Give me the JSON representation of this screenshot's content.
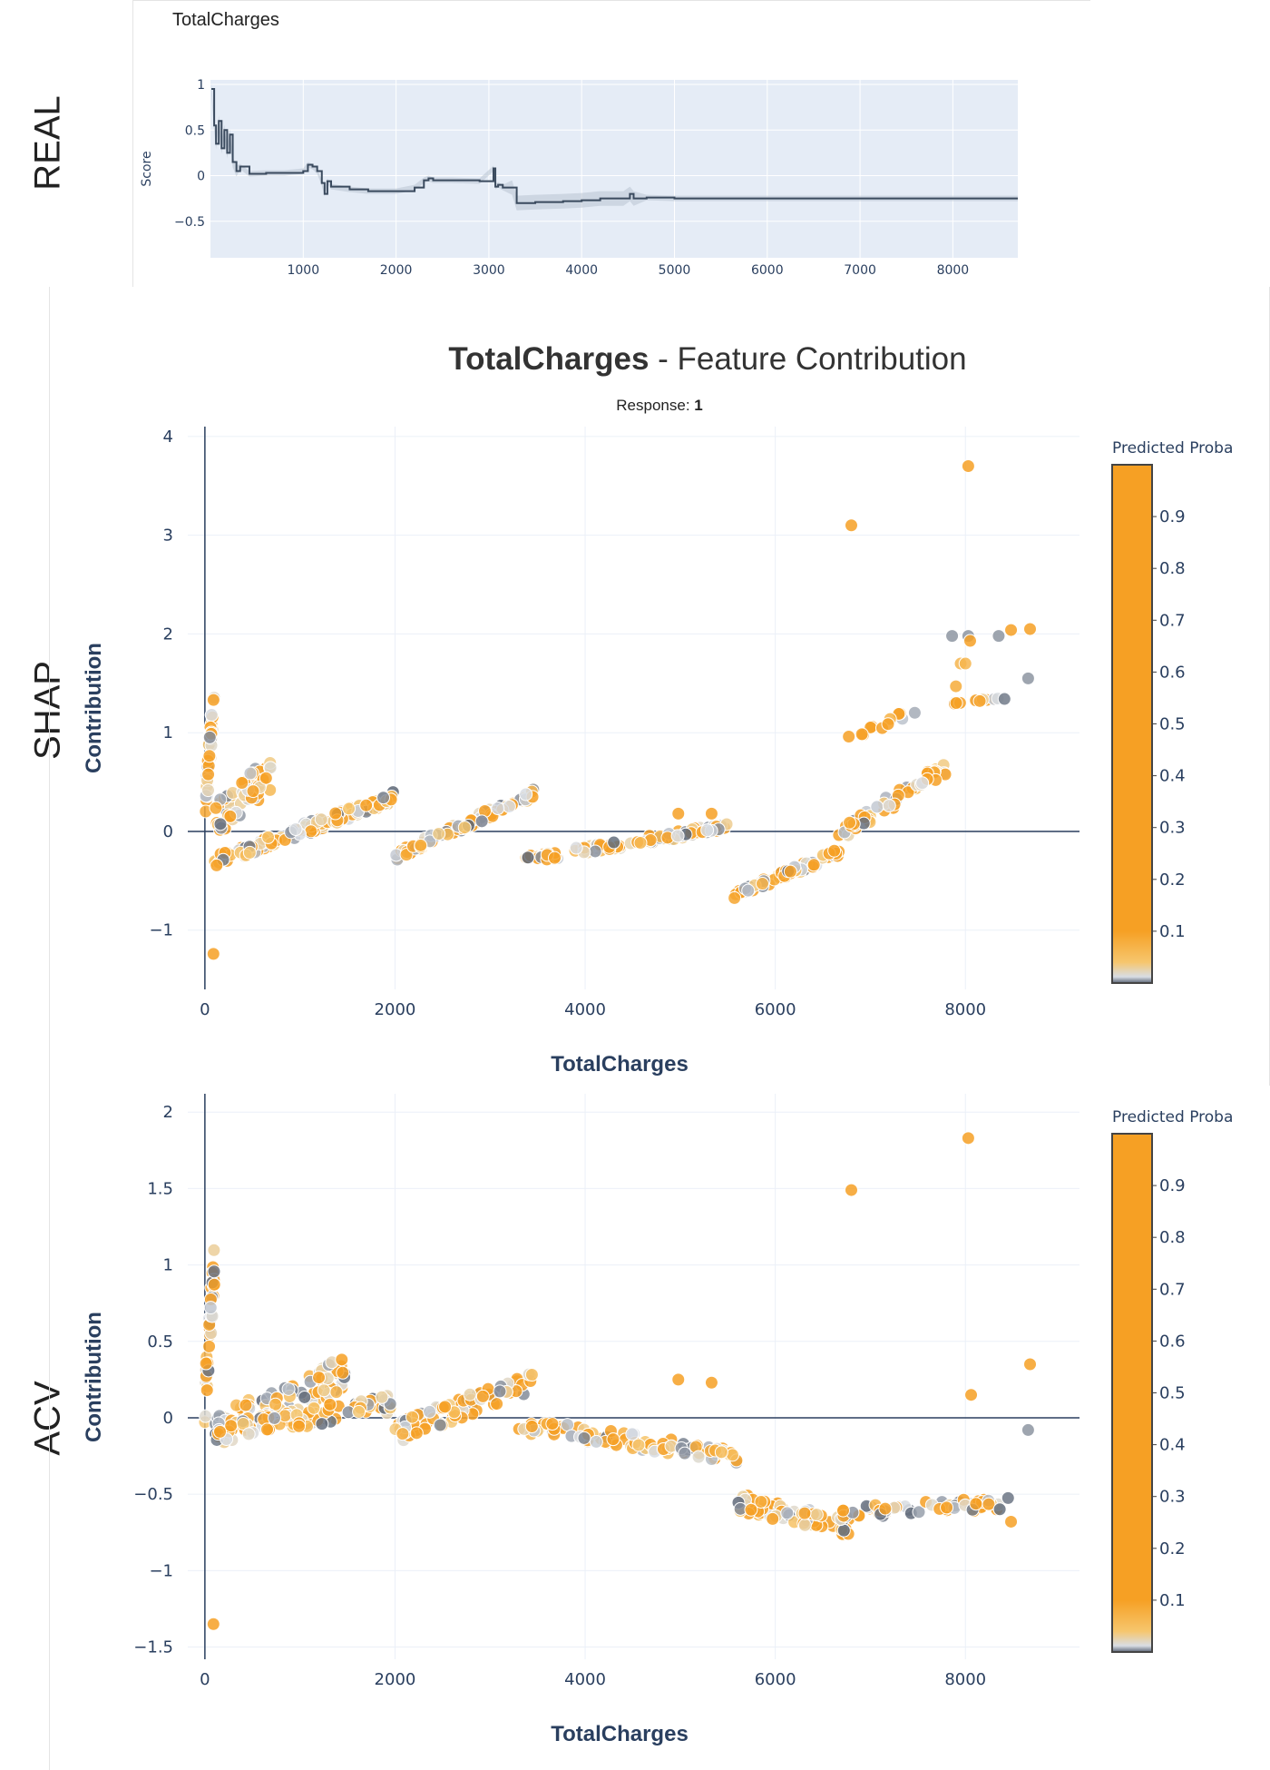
{
  "side_labels": [
    "REAL",
    "SHAP",
    "ACV"
  ],
  "colors": {
    "proba_high": "#F6A024",
    "proba_mid": "#F6C66E",
    "proba_low": "#D8DDE4",
    "proba_lowest": "#5B6575",
    "zero_line": "#2a3f5f",
    "real_plot_bg": "#E5ECF6",
    "real_line": "#3a4a5e"
  },
  "header": {
    "title_bold": "TotalCharges",
    "title_rest": " - Feature Contribution",
    "response_label": "Response: ",
    "response_value": "1"
  },
  "chart_data": [
    {
      "id": "real",
      "type": "line",
      "title": "TotalCharges",
      "xlabel": "",
      "ylabel": "Score",
      "xlim": [
        0,
        8700
      ],
      "ylim": [
        -0.9,
        1.05
      ],
      "xticks": [
        1000,
        2000,
        3000,
        4000,
        5000,
        6000,
        7000,
        8000
      ],
      "yticks": [
        1,
        0.5,
        0,
        -0.5
      ],
      "ytick_labels": [
        "1",
        "0.5",
        "0",
        "−0.5"
      ],
      "x": [
        10,
        40,
        60,
        90,
        120,
        150,
        180,
        210,
        240,
        280,
        320,
        420,
        600,
        800,
        1000,
        1050,
        1100,
        1150,
        1200,
        1230,
        1260,
        1300,
        1500,
        1700,
        2000,
        2200,
        2300,
        2350,
        2400,
        2600,
        2900,
        3050,
        3070,
        3100,
        3150,
        3250,
        3300,
        3500,
        3800,
        4000,
        4200,
        4450,
        4520,
        4560,
        4700,
        5000,
        6000,
        7000,
        8000,
        8700
      ],
      "y": [
        0.95,
        0.55,
        0.35,
        0.6,
        0.3,
        0.5,
        0.25,
        0.45,
        0.15,
        0.05,
        0.1,
        0.02,
        0.03,
        0.03,
        0.05,
        0.12,
        0.1,
        0.05,
        -0.08,
        -0.2,
        -0.06,
        -0.12,
        -0.15,
        -0.17,
        -0.17,
        -0.13,
        -0.05,
        -0.03,
        -0.05,
        -0.05,
        -0.06,
        0.08,
        -0.12,
        -0.1,
        -0.13,
        -0.13,
        -0.3,
        -0.29,
        -0.28,
        -0.27,
        -0.25,
        -0.25,
        -0.2,
        -0.25,
        -0.24,
        -0.25,
        -0.25,
        -0.25,
        -0.25,
        -0.25
      ]
    },
    {
      "id": "shap",
      "type": "scatter",
      "title": "",
      "xlabel": "TotalCharges",
      "ylabel": "Contribution",
      "colorbar_title": "Predicted Proba",
      "colorbar_ticks": [
        "0.9",
        "0.8",
        "0.7",
        "0.6",
        "0.5",
        "0.4",
        "0.3",
        "0.2",
        "0.1"
      ],
      "xlim": [
        -180,
        9200
      ],
      "ylim": [
        -1.6,
        4.1
      ],
      "xticks": [
        0,
        2000,
        4000,
        6000,
        8000
      ],
      "yticks": [
        4,
        3,
        2,
        1,
        0,
        -1
      ],
      "ytick_labels": [
        "4",
        "3",
        "2",
        "1",
        "0",
        "−1"
      ],
      "segments": [
        {
          "x": [
            0,
            100
          ],
          "y": [
            0.2,
            1.4
          ],
          "n": 40,
          "spread": 0.2
        },
        {
          "x": [
            100,
            700
          ],
          "y": [
            0.1,
            0.6
          ],
          "n": 55,
          "spread": 0.18
        },
        {
          "x": [
            100,
            2000
          ],
          "y": [
            -0.3,
            0.35
          ],
          "n": 120,
          "spread": 0.06
        },
        {
          "x": [
            2000,
            3500
          ],
          "y": [
            -0.25,
            0.4
          ],
          "n": 90,
          "spread": 0.05
        },
        {
          "x": [
            3300,
            5500
          ],
          "y": [
            -0.3,
            0.05
          ],
          "n": 90,
          "spread": 0.04
        },
        {
          "x": [
            5550,
            6700
          ],
          "y": [
            -0.65,
            -0.2
          ],
          "n": 65,
          "spread": 0.04
        },
        {
          "x": [
            6650,
            7800
          ],
          "y": [
            -0.05,
            0.65
          ],
          "n": 50,
          "spread": 0.08
        },
        {
          "x": [
            6700,
            7500
          ],
          "y": [
            0.9,
            1.25
          ],
          "n": 12,
          "spread": 0.04
        },
        {
          "x": [
            7850,
            8500
          ],
          "y": [
            1.3,
            1.35
          ],
          "n": 16,
          "spread": 0.01
        }
      ],
      "points": [
        {
          "x": 6800,
          "y": 3.1,
          "p": 0.95
        },
        {
          "x": 8030,
          "y": 3.7,
          "p": 0.95
        },
        {
          "x": 90,
          "y": -1.24,
          "p": 0.9
        },
        {
          "x": 4980,
          "y": 0.18,
          "p": 0.55
        },
        {
          "x": 5330,
          "y": 0.18,
          "p": 0.55
        },
        {
          "x": 7860,
          "y": 1.98,
          "p": 0.02
        },
        {
          "x": 8030,
          "y": 1.98,
          "p": 0.02
        },
        {
          "x": 8050,
          "y": 1.93,
          "p": 0.9
        },
        {
          "x": 8350,
          "y": 1.98,
          "p": 0.02
        },
        {
          "x": 8480,
          "y": 2.04,
          "p": 0.55
        },
        {
          "x": 8680,
          "y": 2.05,
          "p": 0.55
        },
        {
          "x": 8660,
          "y": 1.55,
          "p": 0.02
        },
        {
          "x": 7950,
          "y": 1.7,
          "p": 0.2
        },
        {
          "x": 8000,
          "y": 1.7,
          "p": 0.2
        },
        {
          "x": 7900,
          "y": 1.47,
          "p": 0.25
        }
      ]
    },
    {
      "id": "acv",
      "type": "scatter",
      "title": "",
      "xlabel": "TotalCharges",
      "ylabel": "Contribution",
      "colorbar_title": "Predicted Proba",
      "colorbar_ticks": [
        "0.9",
        "0.8",
        "0.7",
        "0.6",
        "0.5",
        "0.4",
        "0.3",
        "0.2",
        "0.1"
      ],
      "xlim": [
        -180,
        9200
      ],
      "ylim": [
        -1.58,
        2.12
      ],
      "xticks": [
        0,
        2000,
        4000,
        6000,
        8000
      ],
      "yticks": [
        2,
        1.5,
        1,
        0.5,
        0,
        -0.5,
        -1,
        -1.5
      ],
      "ytick_labels": [
        "2",
        "1.5",
        "1",
        "0.5",
        "0",
        "−0.5",
        "−1",
        "−1.5"
      ],
      "segments": [
        {
          "x": [
            0,
            100
          ],
          "y": [
            0.1,
            1.0
          ],
          "n": 35,
          "spread": 0.15
        },
        {
          "x": [
            100,
            1500
          ],
          "y": [
            -0.1,
            0.3
          ],
          "n": 90,
          "spread": 0.12
        },
        {
          "x": [
            100,
            2000
          ],
          "y": [
            -0.1,
            0.1
          ],
          "n": 90,
          "spread": 0.06
        },
        {
          "x": [
            2000,
            3500
          ],
          "y": [
            -0.1,
            0.25
          ],
          "n": 80,
          "spread": 0.07
        },
        {
          "x": [
            3300,
            5600
          ],
          "y": [
            -0.05,
            -0.25
          ],
          "n": 90,
          "spread": 0.05
        },
        {
          "x": [
            5600,
            6800
          ],
          "y": [
            -0.55,
            -0.72
          ],
          "n": 70,
          "spread": 0.06
        },
        {
          "x": [
            6700,
            8450
          ],
          "y": [
            -0.62,
            -0.56
          ],
          "n": 60,
          "spread": 0.04
        }
      ],
      "points": [
        {
          "x": 6800,
          "y": 1.49,
          "p": 0.95
        },
        {
          "x": 8030,
          "y": 1.83,
          "p": 0.95
        },
        {
          "x": 90,
          "y": -1.35,
          "p": 0.9
        },
        {
          "x": 4980,
          "y": 0.25,
          "p": 0.55
        },
        {
          "x": 5330,
          "y": 0.23,
          "p": 0.55
        },
        {
          "x": 8060,
          "y": 0.15,
          "p": 0.9
        },
        {
          "x": 8680,
          "y": 0.35,
          "p": 0.55
        },
        {
          "x": 8660,
          "y": -0.08,
          "p": 0.02
        },
        {
          "x": 8480,
          "y": -0.68,
          "p": 0.55
        }
      ]
    }
  ]
}
